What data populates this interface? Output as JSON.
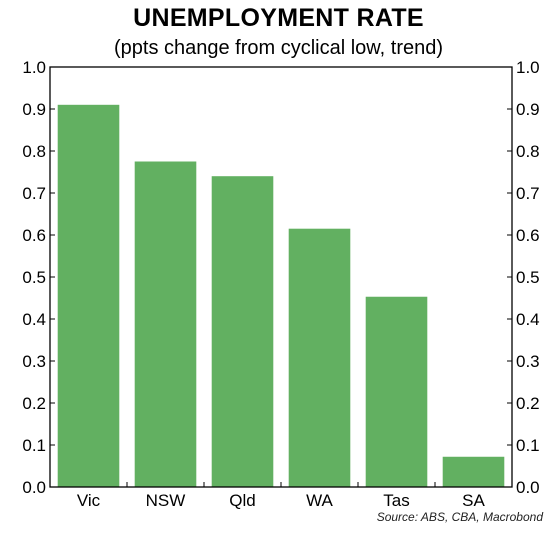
{
  "chart_data": {
    "type": "bar",
    "title": "UNEMPLOYMENT RATE",
    "subtitle": "(ppts change from cyclical low, trend)",
    "categories": [
      "Vic",
      "NSW",
      "Qld",
      "WA",
      "Tas",
      "SA"
    ],
    "values": [
      0.91,
      0.775,
      0.74,
      0.615,
      0.453,
      0.072
    ],
    "ylim": [
      0,
      1.0
    ],
    "yticks": [
      "0.0",
      "0.1",
      "0.2",
      "0.3",
      "0.4",
      "0.5",
      "0.6",
      "0.7",
      "0.8",
      "0.9",
      "1.0"
    ],
    "y_axis_both_sides": true,
    "grid": false,
    "legend": "none",
    "bar_color": "#62b061",
    "source": "Source: ABS, CBA, Macrobond"
  }
}
